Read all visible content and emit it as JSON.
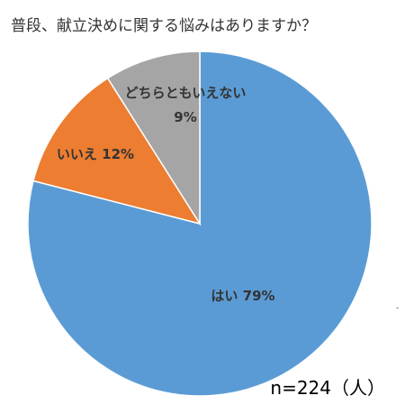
{
  "chart_data": {
    "type": "pie",
    "title": "普段、献立決めに関する悩みはありますか？",
    "slices": [
      {
        "label": "はい",
        "value": 79,
        "display": "はい 79%",
        "color": "#5B9BD5"
      },
      {
        "label": "いいえ",
        "value": 12,
        "display": "いいえ 12%",
        "color": "#ED7D31"
      },
      {
        "label": "どちらともいえない",
        "value": 9,
        "display_lines": [
          "どちらともいえない",
          "9%"
        ],
        "color": "#A5A5A5"
      }
    ],
    "note": "n=224（人）",
    "start": "12 o'clock",
    "direction": "clockwise"
  }
}
